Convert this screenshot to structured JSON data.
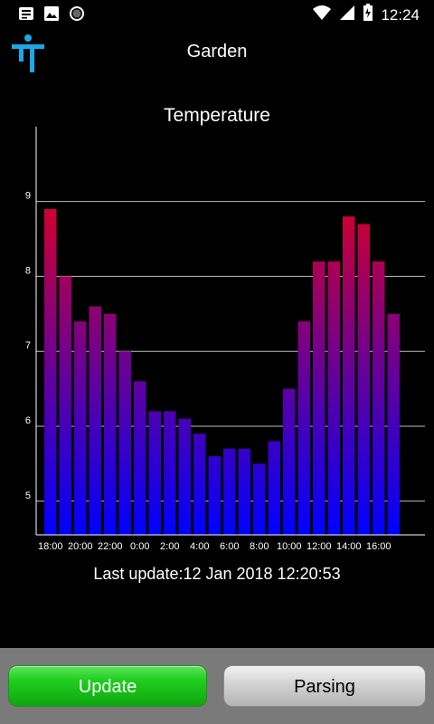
{
  "status_bar": {
    "time": "12:24",
    "icons": [
      "notification-icon",
      "image-icon",
      "sync-icon",
      "wifi-icon",
      "signal-icon",
      "battery-icon"
    ]
  },
  "app_bar": {
    "title": "Garden",
    "logo_icon": "tools-logo-icon"
  },
  "chart_title": "Temperature",
  "chart_data": {
    "type": "bar",
    "categories": [
      "18:00",
      "19:00",
      "20:00",
      "21:00",
      "22:00",
      "23:00",
      "0:00",
      "1:00",
      "2:00",
      "3:00",
      "4:00",
      "5:00",
      "6:00",
      "7:00",
      "8:00",
      "9:00",
      "10:00",
      "11:00",
      "12:00",
      "13:00",
      "14:00",
      "15:00",
      "16:00",
      "17:00"
    ],
    "tick_labels": [
      "18:00",
      "20:00",
      "22:00",
      "0:00",
      "2:00",
      "4:00",
      "6:00",
      "8:00",
      "10:00",
      "12:00",
      "14:00",
      "16:00"
    ],
    "values": [
      8.9,
      8.0,
      7.4,
      7.6,
      7.5,
      7.0,
      6.6,
      6.2,
      6.2,
      6.1,
      5.9,
      5.6,
      5.7,
      5.7,
      5.5,
      5.8,
      6.5,
      7.4,
      8.2,
      8.2,
      8.8,
      8.7,
      8.2,
      7.5
    ],
    "y_ticks": [
      5,
      6,
      7,
      8,
      9
    ],
    "ylim": [
      4.55,
      9.95
    ],
    "grid": true,
    "color_low": "#0000ff",
    "color_high": "#ff0000"
  },
  "last_update": {
    "label": "Last update:",
    "value": "12 Jan 2018 12:20:53"
  },
  "buttons": {
    "update": "Update",
    "parsing": "Parsing"
  }
}
